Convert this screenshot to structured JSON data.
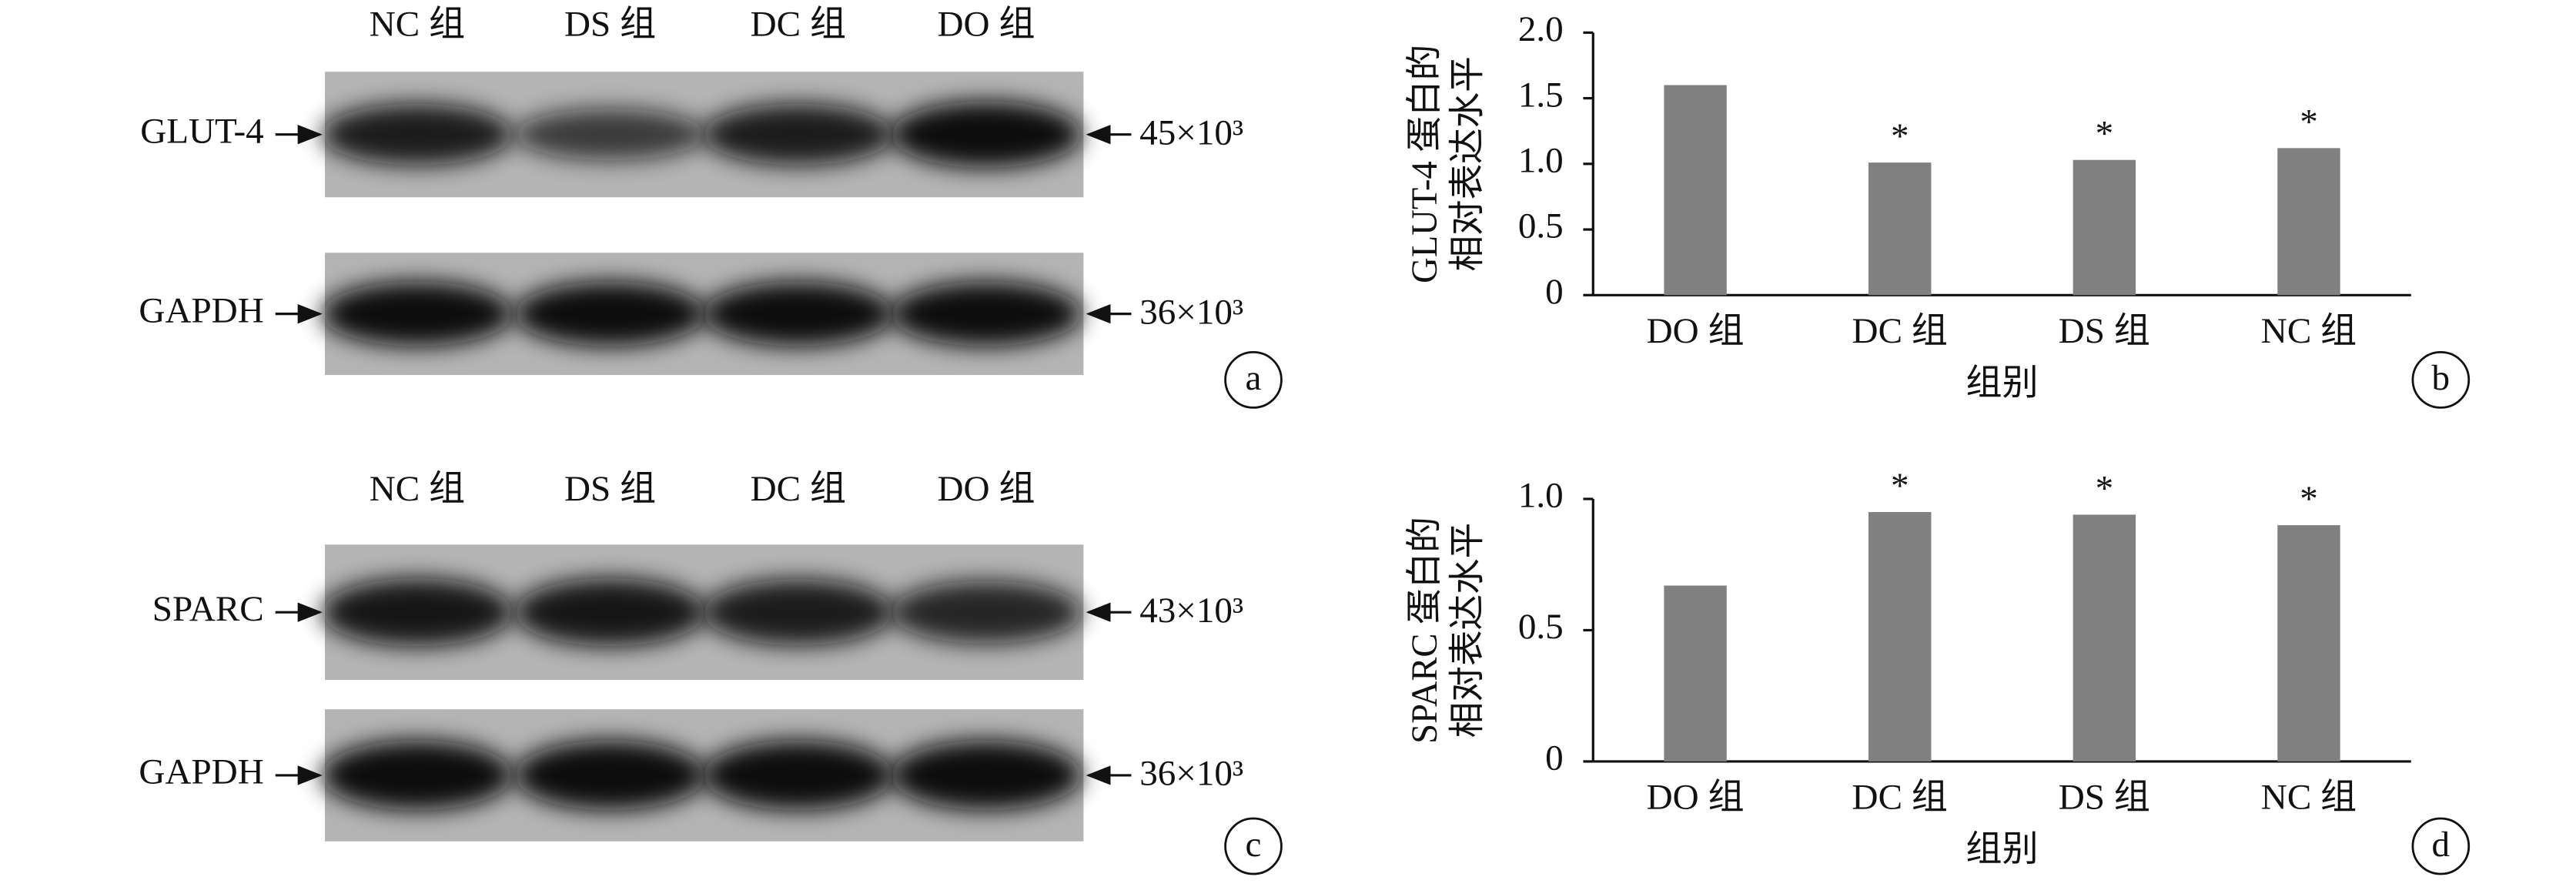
{
  "blots": [
    {
      "panel": "a",
      "lanes": [
        "NC 组",
        "DS 组",
        "DC 组",
        "DO 组"
      ],
      "rows": [
        {
          "label": "GLUT-4",
          "size": "45×10³"
        },
        {
          "label": "GAPDH",
          "size": "36×10³"
        }
      ]
    },
    {
      "panel": "c",
      "lanes": [
        "NC 组",
        "DS 组",
        "DC 组",
        "DO 组"
      ],
      "rows": [
        {
          "label": "SPARC",
          "size": "43×10³"
        },
        {
          "label": "GAPDH",
          "size": "36×10³"
        }
      ]
    }
  ],
  "chart_data": [
    {
      "type": "bar",
      "panel": "b",
      "ylabel": [
        "GLUT-4 蛋白的",
        "相对表达水平"
      ],
      "xlabel": "组别",
      "categories": [
        "DO 组",
        "DC 组",
        "DS 组",
        "NC 组"
      ],
      "values": [
        1.6,
        1.01,
        1.03,
        1.12
      ],
      "significance": [
        null,
        "*",
        "*",
        "*"
      ],
      "color": "#808080",
      "ylim": [
        0,
        2
      ],
      "yticks": [
        0,
        0.5,
        {
          "value": 1,
          "label": "1.0"
        },
        1.5,
        {
          "value": 2,
          "label": "2.0"
        }
      ]
    },
    {
      "type": "bar",
      "panel": "d",
      "ylabel": [
        "SPARC 蛋白的",
        "相对表达水平"
      ],
      "xlabel": "组别",
      "categories": [
        "DO 组",
        "DC 组",
        "DS 组",
        "NC 组"
      ],
      "values": [
        0.67,
        0.95,
        0.94,
        0.9
      ],
      "significance": [
        null,
        "*",
        "*",
        "*"
      ],
      "color": "#808080",
      "ylim": [
        0,
        1
      ],
      "yticks": [
        0,
        0.5,
        {
          "value": 1,
          "label": "1.0"
        }
      ]
    }
  ]
}
